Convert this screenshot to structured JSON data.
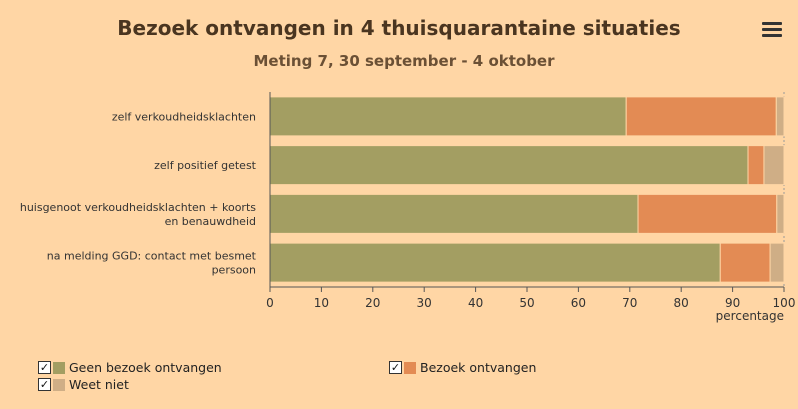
{
  "header": {
    "title": "Bezoek ontvangen in 4 thuisquarantaine situaties",
    "subtitle": "Meting 7, 30 september - 4 oktober",
    "menu_icon": "hamburger-menu-icon"
  },
  "colors": {
    "background": "#FFD6A5",
    "series": [
      "#A39E62",
      "#E38B54",
      "#CFAE86"
    ]
  },
  "chart_data": {
    "type": "bar",
    "orientation": "horizontal",
    "stacking": "percent",
    "categories": [
      "zelf verkoudheidsklachten",
      "zelf positief getest",
      "huisgenoot verkoudheidsklachten + koorts en benauwdheid",
      "na melding GGD: contact met besmet persoon"
    ],
    "category_lines": [
      [
        "zelf verkoudheidsklachten"
      ],
      [
        "zelf positief getest"
      ],
      [
        "huisgenoot verkoudheidsklachten + koorts",
        "en benauwdheid"
      ],
      [
        "na melding GGD: contact met besmet",
        "persoon"
      ]
    ],
    "series": [
      {
        "name": "Geen bezoek ontvangen",
        "values": [
          69.3,
          93.0,
          71.6,
          87.6
        ]
      },
      {
        "name": "Bezoek ontvangen",
        "values": [
          29.2,
          3.1,
          27.0,
          9.7
        ]
      },
      {
        "name": "Weet niet",
        "values": [
          1.5,
          3.9,
          1.4,
          2.7
        ]
      }
    ],
    "xlabel": "percentage",
    "xlim": [
      0,
      100
    ],
    "xticks": [
      "0",
      "10",
      "20",
      "30",
      "40",
      "50",
      "60",
      "70",
      "80",
      "90",
      "100"
    ]
  }
}
